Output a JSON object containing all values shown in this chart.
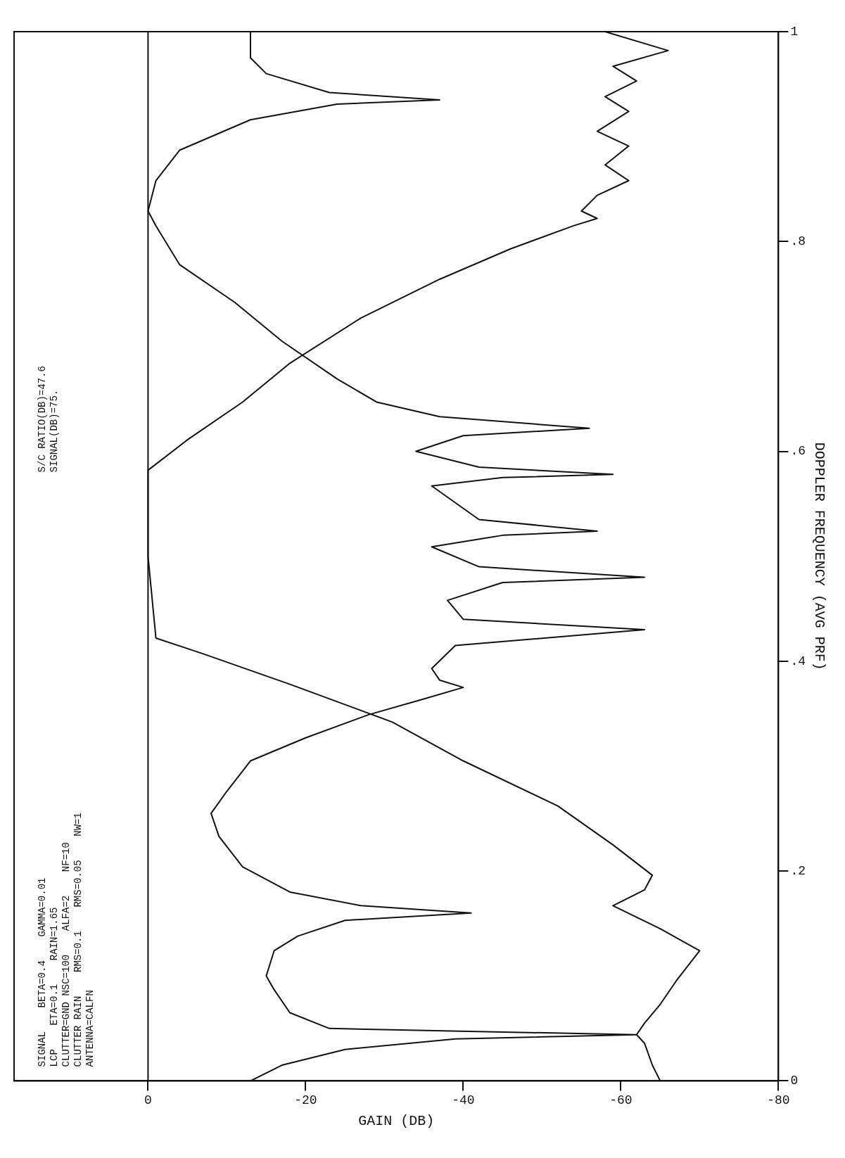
{
  "chart_data": {
    "type": "line",
    "xlabel": "GAIN (DB)",
    "ylabel": "DOPPLER FREQUENCY (AVG PRF)",
    "xlim": [
      17,
      -80
    ],
    "ylim": [
      0,
      1
    ],
    "xticks": [
      0,
      -20,
      -40,
      -60,
      -80
    ],
    "yticks": [
      0,
      {
        "value": 0.2,
        "label": ".2"
      },
      {
        "value": 0.4,
        "label": ".4"
      },
      {
        "value": 0.6,
        "label": ".6"
      },
      {
        "value": 0.8,
        "label": ".8"
      },
      1
    ],
    "marker": "none",
    "line_style": "solid",
    "ref_lines": [
      {
        "axis": "x",
        "value": 0
      }
    ],
    "series": [
      {
        "color": "#111111",
        "values": [
          0,
          0.015,
          0.03,
          0.04,
          0.044,
          0.05,
          0.065,
          0.087,
          0.1,
          0.124,
          0.138,
          0.153,
          0.16,
          0.167,
          0.18,
          0.204,
          0.233,
          0.255,
          0.276,
          0.305,
          0.327,
          0.349,
          0.364,
          0.375,
          0.382,
          0.393,
          0.415,
          0.43,
          0.44,
          0.458,
          0.475,
          0.48,
          0.49,
          0.509,
          0.52,
          0.524,
          0.535,
          0.567,
          0.575,
          0.578,
          0.585,
          0.6,
          0.615,
          0.622,
          0.633,
          0.647,
          0.669,
          0.705,
          0.742,
          0.778,
          0.815,
          0.829,
          0.858,
          0.887,
          0.916,
          0.931,
          0.935,
          0.942,
          0.96,
          0.975,
          1
        ],
        "x": [
          -13,
          -17,
          -25,
          -39,
          -62,
          -23,
          -18,
          -16,
          -15,
          -16,
          -19,
          -25,
          -41,
          -27,
          -18,
          -12,
          -9,
          -8,
          -10,
          -13,
          -20,
          -28,
          -35,
          -40,
          -37,
          -36,
          -39,
          -63,
          -40,
          -38,
          -45,
          -63,
          -42,
          -36,
          -45,
          -57,
          -42,
          -36,
          -45,
          -59,
          -42,
          -34,
          -40,
          -56,
          -37,
          -29,
          -24,
          -17,
          -11,
          -4,
          -1,
          0,
          -1,
          -4,
          -13,
          -24,
          -37,
          -23,
          -15,
          -13,
          -13
        ]
      },
      {
        "color": "#111111",
        "values": [
          0,
          0.015,
          0.036,
          0.044,
          0.055,
          0.073,
          0.095,
          0.124,
          0.145,
          0.167,
          0.182,
          0.196,
          0.225,
          0.262,
          0.305,
          0.342,
          0.378,
          0.407,
          0.422,
          0.5,
          0.582,
          0.611,
          0.647,
          0.684,
          0.727,
          0.764,
          0.793,
          0.815,
          0.822,
          0.829,
          0.844,
          0.858,
          0.873,
          0.891,
          0.905,
          0.924,
          0.938,
          0.953,
          0.967,
          0.982,
          1
        ],
        "x": [
          -65,
          -64,
          -63,
          -62,
          -63,
          -65,
          -67,
          -70,
          -65,
          -59,
          -63,
          -64,
          -59,
          -52,
          -40,
          -31,
          -18,
          -7,
          -1,
          0,
          0,
          -5,
          -12,
          -18,
          -27,
          -37,
          -46,
          -54,
          -57,
          -55,
          -57,
          -61,
          -58,
          -61,
          -57,
          -61,
          -58,
          -62,
          -59,
          -66,
          -58
        ]
      }
    ],
    "annotations": [
      "SIGNAL    BETA=0.4    GAMMA=0.01",
      "LCP    ETA=0.1    RAIN=1.65",
      "CLUTTER=GND NSC=100    ALFA=2    NF=10",
      "CLUTTER RAIN    RMS=0.1    RMS=0.05    NW=1",
      "ANTENNA=CALFN",
      "S/C RATIO(DB)=47.6",
      "SIGNAL(DB)=75."
    ]
  }
}
